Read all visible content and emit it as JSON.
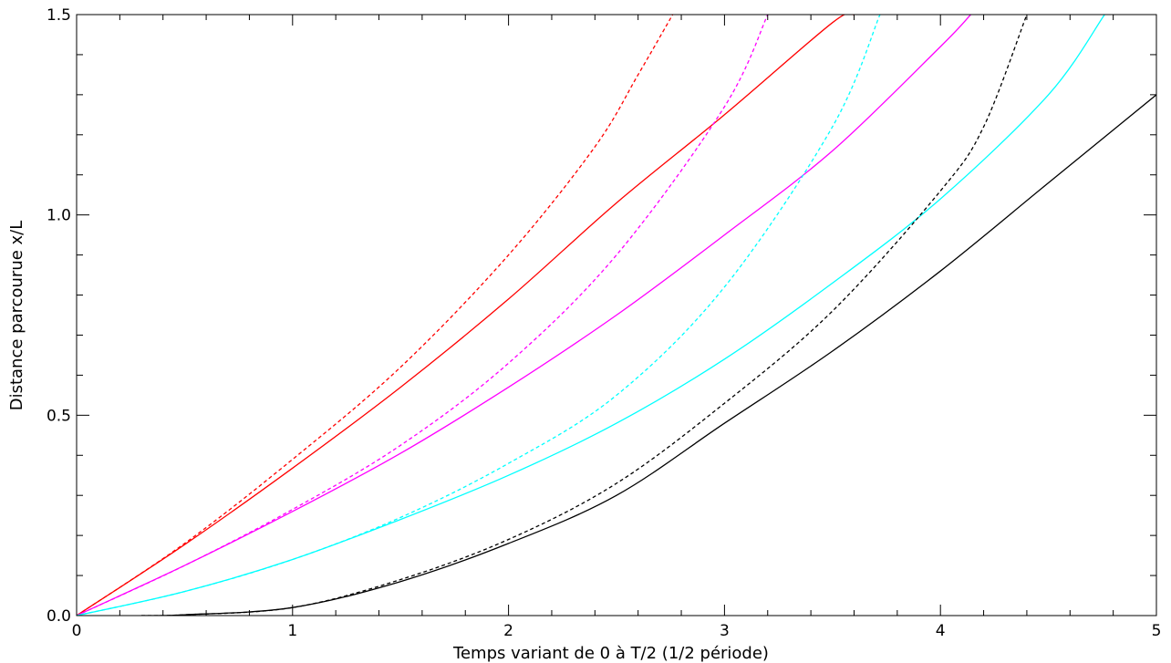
{
  "chart_data": {
    "type": "line",
    "title": "",
    "xlabel": "Temps variant de 0 à T/2 (1/2 période)",
    "ylabel": "Distance parcourue x/L",
    "xlim": [
      0,
      5
    ],
    "ylim": [
      0,
      1.5
    ],
    "x_ticks": [
      0,
      1,
      2,
      3,
      4,
      5
    ],
    "x_tick_labels": [
      "0",
      "1",
      "2",
      "3",
      "4",
      "5"
    ],
    "y_ticks": [
      0.0,
      0.5,
      1.0,
      1.5
    ],
    "y_tick_labels": [
      "0.0",
      "0.5",
      "1.0",
      "1.5"
    ],
    "x_minor_step": 0.2,
    "y_minor_step": 0.1,
    "grid": false,
    "legend": "none",
    "series": [
      {
        "color": "#ff0000",
        "dash": "solid",
        "points": [
          [
            0,
            0
          ],
          [
            0.5,
            0.177
          ],
          [
            1,
            0.368
          ],
          [
            1.5,
            0.57
          ],
          [
            2,
            0.79
          ],
          [
            2.5,
            1.03
          ],
          [
            3,
            1.25
          ],
          [
            3.5,
            1.48
          ],
          [
            3.6,
            1.5
          ]
        ]
      },
      {
        "color": "#ff0000",
        "dash": "dashed",
        "points": [
          [
            0,
            0
          ],
          [
            0.5,
            0.18
          ],
          [
            1,
            0.39
          ],
          [
            1.5,
            0.62
          ],
          [
            2,
            0.9
          ],
          [
            2.4,
            1.17
          ],
          [
            2.6,
            1.35
          ],
          [
            2.76,
            1.5
          ]
        ]
      },
      {
        "color": "#ff00ff",
        "dash": "solid",
        "points": [
          [
            0,
            0
          ],
          [
            0.5,
            0.125
          ],
          [
            1,
            0.26
          ],
          [
            1.5,
            0.405
          ],
          [
            2,
            0.57
          ],
          [
            2.5,
            0.75
          ],
          [
            3,
            0.95
          ],
          [
            3.5,
            1.16
          ],
          [
            4,
            1.42
          ],
          [
            4.14,
            1.5
          ]
        ]
      },
      {
        "color": "#ff00ff",
        "dash": "dashed",
        "points": [
          [
            0,
            0
          ],
          [
            0.5,
            0.125
          ],
          [
            1,
            0.265
          ],
          [
            1.5,
            0.425
          ],
          [
            2,
            0.63
          ],
          [
            2.5,
            0.9
          ],
          [
            3,
            1.27
          ],
          [
            3.2,
            1.5
          ]
        ]
      },
      {
        "color": "#00ffff",
        "dash": "solid",
        "points": [
          [
            0,
            0
          ],
          [
            0.5,
            0.06
          ],
          [
            1,
            0.14
          ],
          [
            1.5,
            0.24
          ],
          [
            2,
            0.35
          ],
          [
            2.5,
            0.48
          ],
          [
            3,
            0.64
          ],
          [
            3.5,
            0.83
          ],
          [
            4,
            1.04
          ],
          [
            4.5,
            1.3
          ],
          [
            4.76,
            1.5
          ]
        ]
      },
      {
        "color": "#00ffff",
        "dash": "dashed",
        "points": [
          [
            0,
            0
          ],
          [
            0.5,
            0.06
          ],
          [
            1,
            0.14
          ],
          [
            1.5,
            0.245
          ],
          [
            2,
            0.38
          ],
          [
            2.5,
            0.55
          ],
          [
            3,
            0.82
          ],
          [
            3.5,
            1.22
          ],
          [
            3.72,
            1.5
          ]
        ]
      },
      {
        "color": "#000000",
        "dash": "solid",
        "points": [
          [
            0.3,
            0
          ],
          [
            0.5,
            0.002
          ],
          [
            1,
            0.02
          ],
          [
            1.5,
            0.085
          ],
          [
            2,
            0.18
          ],
          [
            2.5,
            0.3
          ],
          [
            3,
            0.48
          ],
          [
            3.5,
            0.66
          ],
          [
            4,
            0.86
          ],
          [
            4.5,
            1.08
          ],
          [
            5,
            1.3
          ]
        ]
      },
      {
        "color": "#000000",
        "dash": "dashed",
        "points": [
          [
            0.3,
            0
          ],
          [
            0.5,
            0.002
          ],
          [
            1,
            0.02
          ],
          [
            1.5,
            0.09
          ],
          [
            2,
            0.19
          ],
          [
            2.5,
            0.33
          ],
          [
            3,
            0.53
          ],
          [
            3.5,
            0.76
          ],
          [
            4,
            1.06
          ],
          [
            4.2,
            1.22
          ],
          [
            4.4,
            1.5
          ]
        ]
      }
    ]
  }
}
